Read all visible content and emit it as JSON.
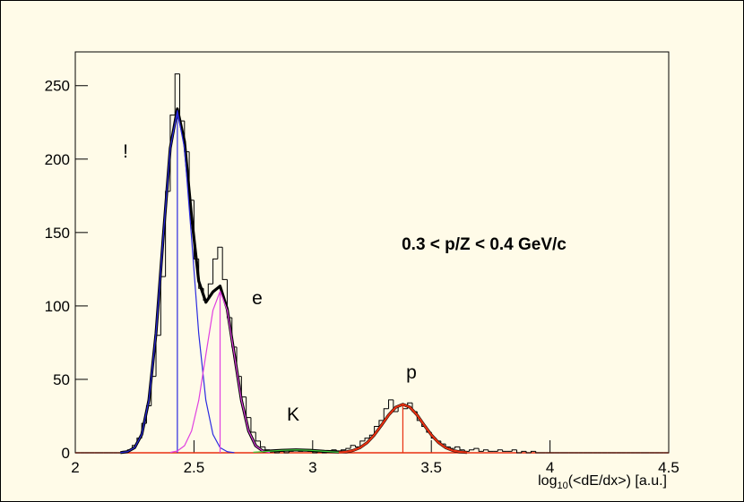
{
  "chart_data": {
    "type": "histogram",
    "annotation": "0.3 < p/Z < 0.4 GeV/c",
    "x_label": {
      "prefix": "log",
      "subscript": "10",
      "suffix": "(<dE/dx>) [a.u.]"
    },
    "xlim": [
      2,
      4.5
    ],
    "xticks": [
      2,
      2.5,
      3,
      3.5,
      4,
      4.5
    ],
    "ylim": [
      0,
      273
    ],
    "yticks": [
      0,
      50,
      100,
      150,
      200,
      250
    ],
    "color": "#000000",
    "bins": [
      2.0,
      2.02,
      2.04,
      2.06,
      2.08,
      2.1,
      2.12,
      2.14,
      2.16,
      2.18,
      2.2,
      2.22,
      2.24,
      2.26,
      2.28,
      2.3,
      2.32,
      2.34,
      2.36,
      2.38,
      2.4,
      2.42,
      2.44,
      2.46,
      2.48,
      2.5,
      2.52,
      2.54,
      2.56,
      2.58,
      2.6,
      2.62,
      2.64,
      2.66,
      2.68,
      2.7,
      2.72,
      2.74,
      2.76,
      2.78,
      2.8,
      2.82,
      2.84,
      2.86,
      2.88,
      2.9,
      2.92,
      2.94,
      2.96,
      2.98,
      3.0,
      3.02,
      3.04,
      3.06,
      3.08,
      3.1,
      3.12,
      3.14,
      3.16,
      3.18,
      3.2,
      3.22,
      3.24,
      3.26,
      3.28,
      3.3,
      3.32,
      3.34,
      3.36,
      3.38,
      3.4,
      3.42,
      3.44,
      3.46,
      3.48,
      3.5,
      3.52,
      3.54,
      3.56,
      3.58,
      3.6,
      3.62,
      3.64,
      3.66,
      3.68,
      3.7,
      3.72,
      3.74,
      3.76,
      3.78,
      3.8,
      3.82,
      3.84,
      3.86,
      3.88,
      3.9,
      3.92,
      3.94,
      3.96,
      3.98,
      4.0,
      4.02,
      4.04,
      4.06,
      4.08,
      4.1,
      4.12,
      4.14,
      4.16,
      4.18,
      4.2,
      4.22,
      4.24,
      4.26,
      4.28,
      4.3,
      4.32,
      4.34,
      4.36,
      4.38,
      4.4,
      4.42,
      4.44,
      4.46,
      4.48,
      4.5
    ],
    "values": [
      0,
      0,
      0,
      0,
      0,
      0,
      0,
      0,
      0,
      0,
      1,
      2,
      5,
      10,
      20,
      32,
      52,
      80,
      120,
      178,
      230,
      258,
      226,
      205,
      172,
      132,
      112,
      104,
      115,
      132,
      140,
      118,
      92,
      72,
      52,
      38,
      24,
      14,
      8,
      4,
      2,
      1,
      0,
      1,
      0,
      1,
      2,
      1,
      2,
      1,
      0,
      1,
      0,
      1,
      2,
      1,
      2,
      3,
      5,
      4,
      8,
      10,
      12,
      18,
      22,
      30,
      36,
      28,
      32,
      30,
      34,
      28,
      22,
      18,
      14,
      10,
      8,
      6,
      4,
      3,
      4,
      2,
      1,
      2,
      3,
      1,
      2,
      1,
      1,
      2,
      1,
      1,
      2,
      0,
      1,
      0,
      1,
      0,
      0,
      0,
      0,
      0,
      0,
      0,
      0,
      0,
      0,
      0,
      0,
      0,
      0,
      0,
      0,
      0,
      0,
      0,
      0,
      0,
      0,
      0,
      0,
      0,
      0,
      0,
      0
    ],
    "fit_total": {
      "color": "#000000",
      "x": [
        2.19,
        2.22,
        2.25,
        2.28,
        2.31,
        2.34,
        2.37,
        2.4,
        2.43,
        2.46,
        2.49,
        2.52,
        2.55,
        2.58,
        2.61,
        2.64,
        2.67,
        2.7,
        2.73,
        2.76,
        2.79,
        2.82,
        2.87,
        2.93,
        2.99,
        3.05,
        3.11,
        3.14,
        3.17,
        3.2,
        3.23,
        3.26,
        3.29,
        3.32,
        3.35,
        3.38,
        3.41,
        3.44,
        3.47,
        3.5,
        3.53,
        3.56,
        3.59,
        3.62,
        3.65
      ],
      "values": [
        0.13,
        0.75,
        3.5,
        12.5,
        35.8,
        81.2,
        145.9,
        207.5,
        234.2,
        212.1,
        160.8,
        116.9,
        102.5,
        109.6,
        113.5,
        97.9,
        66.8,
        35.7,
        14.9,
        4.8,
        1.22,
        1.2,
        1.67,
        2,
        1.67,
        0.97,
        0.61,
        0.61,
        1.56,
        3.5,
        6.96,
        12.2,
        18.8,
        25.7,
        31.0,
        33,
        31.0,
        25.7,
        18.8,
        12.2,
        6.96,
        3.5,
        1.56,
        0.61,
        0.21
      ]
    },
    "series": [
      {
        "label": "!",
        "color": "#2a2ae0",
        "x": [
          2.19,
          2.22,
          2.25,
          2.28,
          2.31,
          2.34,
          2.37,
          2.4,
          2.43,
          2.46,
          2.49,
          2.52,
          2.55,
          2.58,
          2.61,
          2.64,
          2.67
        ],
        "values": [
          0.13,
          0.75,
          3.5,
          12.5,
          35.8,
          81.2,
          145.9,
          207.3,
          233,
          207.3,
          145.9,
          81.2,
          35.8,
          12.5,
          3.5,
          0.75,
          0.13
        ],
        "mean": 2.43,
        "peak": 8
      },
      {
        "label": "e",
        "color": "#e040e0",
        "x": [
          2.4,
          2.43,
          2.46,
          2.49,
          2.52,
          2.55,
          2.58,
          2.61,
          2.64,
          2.67,
          2.7,
          2.73,
          2.76,
          2.79,
          2.82
        ],
        "values": [
          0.24,
          1.22,
          4.8,
          14.9,
          35.7,
          66.7,
          97.1,
          110,
          97.1,
          66.7,
          35.7,
          14.9,
          4.8,
          1.22,
          0.24
        ],
        "mean": 2.61,
        "peak": 7
      },
      {
        "label": "K",
        "color": "#40d040",
        "x": [
          2.75,
          2.81,
          2.87,
          2.93,
          2.99,
          3.05,
          3.11
        ],
        "values": [
          0.4,
          0.97,
          1.67,
          2,
          1.67,
          0.97,
          0.4
        ]
      },
      {
        "label": "p",
        "color": "#e83010",
        "x": [
          3.11,
          3.14,
          3.17,
          3.2,
          3.23,
          3.26,
          3.29,
          3.32,
          3.35,
          3.38,
          3.41,
          3.44,
          3.47,
          3.5,
          3.53,
          3.56,
          3.59,
          3.62,
          3.65
        ],
        "values": [
          0.21,
          0.61,
          1.56,
          3.5,
          6.96,
          12.2,
          18.8,
          25.7,
          31.0,
          33,
          31.0,
          25.7,
          18.8,
          12.2,
          6.96,
          3.5,
          1.56,
          0.61,
          0.21
        ],
        "mean": 3.38,
        "peak": 9
      }
    ]
  }
}
